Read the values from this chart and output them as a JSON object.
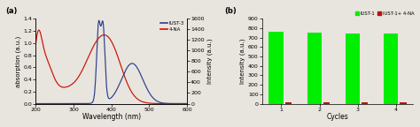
{
  "panel_a": {
    "left_ylabel": "absorption (a.u.)",
    "right_ylabel": "Intensity (a.u.)",
    "xlabel": "Wavelength (nm)",
    "xlim": [
      200,
      600
    ],
    "left_ylim": [
      0,
      1.4
    ],
    "right_ylim": [
      0,
      1600
    ],
    "left_yticks": [
      0,
      0.2,
      0.4,
      0.6,
      0.8,
      1.0,
      1.2,
      1.4
    ],
    "right_yticks": [
      0,
      200,
      400,
      600,
      800,
      1000,
      1200,
      1400,
      1600
    ],
    "xticks": [
      200,
      300,
      400,
      500,
      600
    ],
    "legend": [
      "IUST-3",
      "4-NA"
    ],
    "line_colors": [
      "#2b3f8c",
      "#cc1100"
    ],
    "label": "(a)"
  },
  "panel_b": {
    "ylabel": "Intensity (a.u.)",
    "xlabel": "Cycles",
    "ylim": [
      0,
      900
    ],
    "yticks": [
      0,
      100,
      200,
      300,
      400,
      500,
      600,
      700,
      800,
      900
    ],
    "xticks": [
      1,
      2,
      3,
      4
    ],
    "bar_width": 0.55,
    "iust1_values": [
      760,
      750,
      745,
      748
    ],
    "iust1_4na_values": [
      18,
      15,
      16,
      17
    ],
    "bar_colors": [
      "#00ee00",
      "#bb1100"
    ],
    "legend": [
      "IUST-1",
      "IUST-1+ 4-NA"
    ],
    "label": "(b)"
  }
}
